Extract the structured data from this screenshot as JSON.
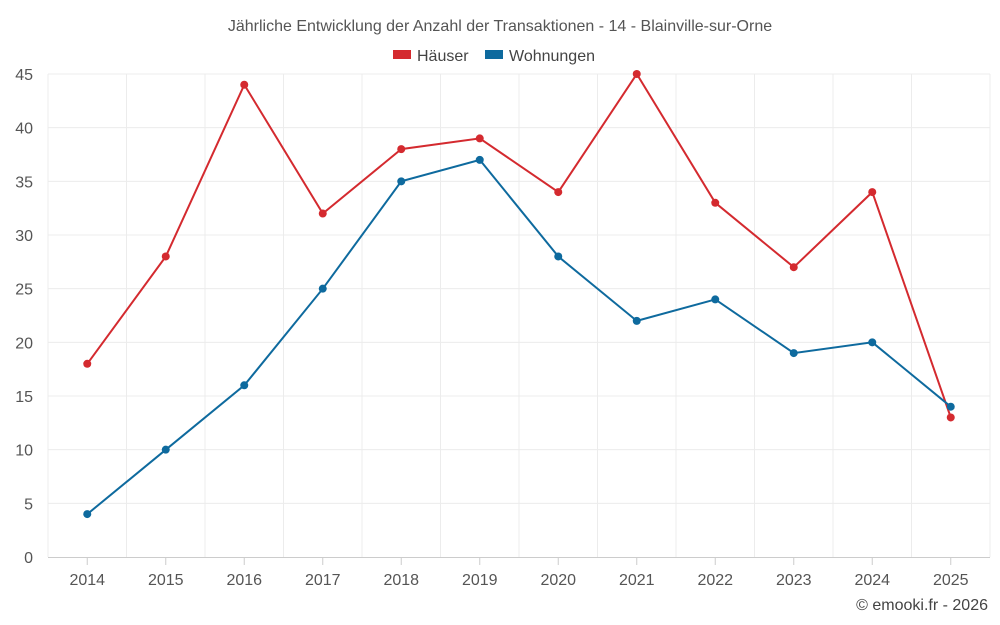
{
  "chart_data": {
    "type": "line",
    "title": "Jährliche Entwicklung der Anzahl der Transaktionen - 14 - Blainville-sur-Orne",
    "xlabel": "",
    "ylabel": "",
    "categories": [
      "2014",
      "2015",
      "2016",
      "2017",
      "2018",
      "2019",
      "2020",
      "2021",
      "2022",
      "2023",
      "2024",
      "2025"
    ],
    "ylim": [
      0,
      45
    ],
    "yticks": [
      0,
      5,
      10,
      15,
      20,
      25,
      30,
      35,
      40,
      45
    ],
    "grid": true,
    "legend_position": "top-center",
    "series": [
      {
        "name": "Häuser",
        "color": "#d42a2f",
        "values": [
          18,
          28,
          44,
          32,
          38,
          39,
          34,
          45,
          33,
          27,
          34,
          13
        ]
      },
      {
        "name": "Wohnungen",
        "color": "#0e6a9e",
        "values": [
          4,
          10,
          16,
          25,
          35,
          37,
          28,
          22,
          24,
          19,
          20,
          14
        ]
      }
    ]
  },
  "credit": "© emooki.fr - 2026"
}
